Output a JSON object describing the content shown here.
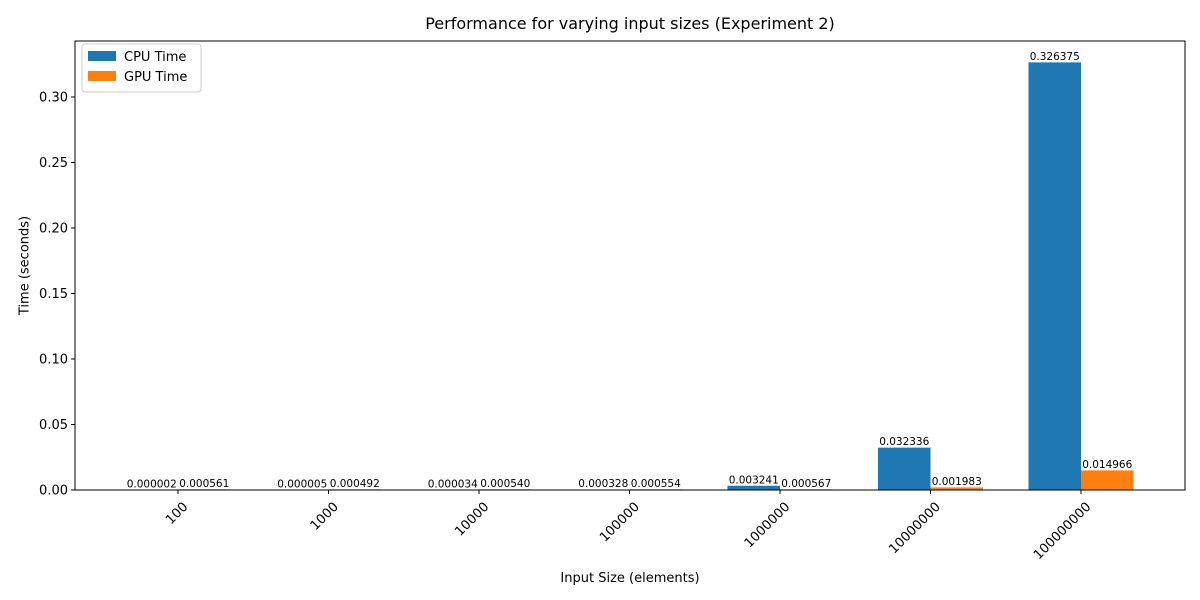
{
  "chart_data": {
    "type": "bar",
    "title": "Performance for varying input sizes (Experiment 2)",
    "xlabel": "Input Size (elements)",
    "ylabel": "Time (seconds)",
    "categories": [
      "100",
      "1000",
      "10000",
      "100000",
      "1000000",
      "10000000",
      "100000000"
    ],
    "series": [
      {
        "name": "CPU Time",
        "color": "#1f77b4",
        "values": [
          2e-06,
          5e-06,
          3.4e-05,
          0.000328,
          0.003241,
          0.032336,
          0.326375
        ],
        "labels": [
          "0.000002",
          "0.000005",
          "0.000034",
          "0.000328",
          "0.003241",
          "0.032336",
          "0.326375"
        ]
      },
      {
        "name": "GPU Time",
        "color": "#ff7f0e",
        "values": [
          0.000561,
          0.000492,
          0.00054,
          0.000554,
          0.000567,
          0.001983,
          0.014966
        ],
        "labels": [
          "0.000561",
          "0.000492",
          "0.000540",
          "0.000554",
          "0.000567",
          "0.001983",
          "0.014966"
        ]
      }
    ],
    "ylim": [
      0,
      0.3427
    ],
    "yticks": [
      0.0,
      0.05,
      0.1,
      0.15,
      0.2,
      0.25,
      0.3
    ],
    "ytick_labels": [
      "0.00",
      "0.05",
      "0.10",
      "0.15",
      "0.20",
      "0.25",
      "0.30"
    ],
    "grid": false,
    "legend_position": "top-left"
  }
}
